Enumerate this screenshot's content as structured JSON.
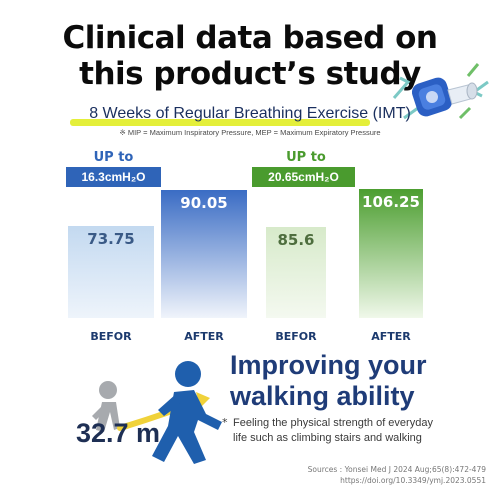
{
  "title_line1": "Clinical data based on",
  "title_line2": "this product’s study",
  "subtitle": "8 Weeks of Regular Breathing Exercise (IMT)",
  "note": "※ MIP = Maximum Inspiratory Pressure, MEP = Maximum Expiratory Pressure",
  "colors": {
    "mip_before": "#cfe1f3",
    "mip_after": "#3f70c6",
    "mep_before": "#e2efd7",
    "mep_after": "#52a535",
    "mip_accent": "#2f64b8",
    "mep_accent": "#4a9b2e"
  },
  "chart_data": [
    {
      "type": "bar",
      "categories": [
        "BEFOR",
        "AFTER"
      ],
      "values": [
        73.75,
        90.05
      ],
      "value_labels": [
        "73.75",
        "90.05"
      ],
      "improvement_label": "UP to",
      "improvement_value": "16.3cmH₂O",
      "ylim": [
        0,
        100
      ]
    },
    {
      "type": "bar",
      "categories": [
        "BEFOR",
        "AFTER"
      ],
      "values": [
        85.6,
        106.25
      ],
      "value_labels": [
        "85.6",
        "106.25"
      ],
      "improvement_label": "UP to",
      "improvement_value": "20.65cmH₂O",
      "ylim": [
        0,
        120
      ]
    }
  ],
  "walking": {
    "distance": "32.7 m",
    "title_line1": "Improving your",
    "title_line2": "walking ability",
    "bullet": "*",
    "desc_line1": "Feeling the physical strength of everyday",
    "desc_line2": "life such as climbing stairs and walking"
  },
  "icons": {
    "device": "breathing-trainer-device-icon",
    "walker_grey": "walking-person-grey-icon",
    "walker_blue": "walking-person-blue-icon",
    "arrow": "yellow-curved-arrow-icon"
  },
  "sources": {
    "line1": "Sources : Yonsei Med J 2024 Aug;65(8):472-479",
    "line2": "https://doi.org/10.3349/ymj.2023.0551"
  }
}
